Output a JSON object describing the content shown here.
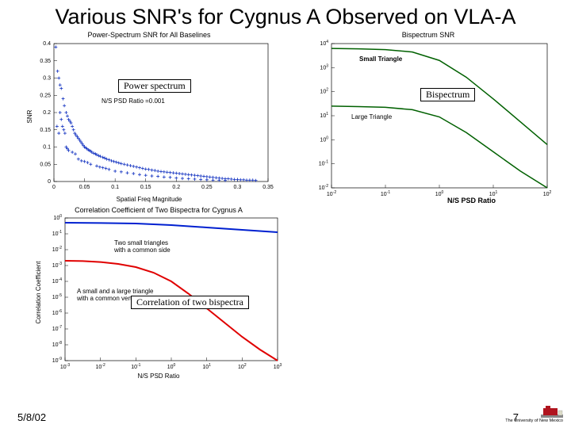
{
  "slide": {
    "title": "Various SNR's for Cygnus A Observed on VLA-A",
    "date": "5/8/02",
    "page": "7",
    "logo_text": "The University of New Mexico"
  },
  "labels": {
    "power_spectrum": "Power spectrum",
    "bispectrum": "Bispectrum",
    "correlation": "Correlation of two bispectra",
    "ns_psd_ratio": "N/S PSD Ratio"
  },
  "chart1": {
    "type": "scatter",
    "title": "Power-Spectrum SNR for All Baselines",
    "xlabel": "Spatial Freq Magnitude",
    "ylabel": "SNR",
    "annotation": "N/S PSD Ratio =0.001",
    "xlim": [
      0,
      0.35
    ],
    "ylim": [
      0,
      0.4
    ],
    "xticks": [
      0,
      0.05,
      0.1,
      0.15,
      0.2,
      0.25,
      0.3,
      0.35
    ],
    "yticks": [
      0,
      0.05,
      0.1,
      0.15,
      0.2,
      0.25,
      0.3,
      0.35,
      0.4
    ],
    "marker_color": "#1030c0",
    "marker_size": 2,
    "background_color": "#ffffff",
    "title_fontsize": 9,
    "label_fontsize": 8,
    "points": [
      [
        0.003,
        0.39
      ],
      [
        0.006,
        0.32
      ],
      [
        0.008,
        0.3
      ],
      [
        0.01,
        0.28
      ],
      [
        0.012,
        0.27
      ],
      [
        0.015,
        0.24
      ],
      [
        0.017,
        0.22
      ],
      [
        0.02,
        0.2
      ],
      [
        0.022,
        0.19
      ],
      [
        0.024,
        0.18
      ],
      [
        0.026,
        0.175
      ],
      [
        0.028,
        0.17
      ],
      [
        0.03,
        0.16
      ],
      [
        0.01,
        0.2
      ],
      [
        0.012,
        0.18
      ],
      [
        0.014,
        0.16
      ],
      [
        0.016,
        0.15
      ],
      [
        0.018,
        0.14
      ],
      [
        0.005,
        0.16
      ],
      [
        0.008,
        0.14
      ],
      [
        0.032,
        0.15
      ],
      [
        0.034,
        0.14
      ],
      [
        0.036,
        0.135
      ],
      [
        0.038,
        0.13
      ],
      [
        0.04,
        0.125
      ],
      [
        0.042,
        0.12
      ],
      [
        0.044,
        0.115
      ],
      [
        0.046,
        0.11
      ],
      [
        0.048,
        0.105
      ],
      [
        0.05,
        0.1
      ],
      [
        0.052,
        0.098
      ],
      [
        0.054,
        0.095
      ],
      [
        0.056,
        0.092
      ],
      [
        0.058,
        0.09
      ],
      [
        0.06,
        0.088
      ],
      [
        0.02,
        0.1
      ],
      [
        0.022,
        0.095
      ],
      [
        0.024,
        0.09
      ],
      [
        0.03,
        0.085
      ],
      [
        0.035,
        0.08
      ],
      [
        0.062,
        0.085
      ],
      [
        0.065,
        0.082
      ],
      [
        0.068,
        0.08
      ],
      [
        0.07,
        0.078
      ],
      [
        0.073,
        0.075
      ],
      [
        0.076,
        0.073
      ],
      [
        0.08,
        0.07
      ],
      [
        0.083,
        0.068
      ],
      [
        0.086,
        0.065
      ],
      [
        0.09,
        0.063
      ],
      [
        0.04,
        0.065
      ],
      [
        0.045,
        0.06
      ],
      [
        0.05,
        0.058
      ],
      [
        0.055,
        0.055
      ],
      [
        0.06,
        0.05
      ],
      [
        0.094,
        0.06
      ],
      [
        0.098,
        0.058
      ],
      [
        0.102,
        0.056
      ],
      [
        0.106,
        0.054
      ],
      [
        0.11,
        0.052
      ],
      [
        0.115,
        0.05
      ],
      [
        0.12,
        0.048
      ],
      [
        0.125,
        0.046
      ],
      [
        0.13,
        0.044
      ],
      [
        0.135,
        0.042
      ],
      [
        0.07,
        0.045
      ],
      [
        0.075,
        0.042
      ],
      [
        0.08,
        0.04
      ],
      [
        0.085,
        0.038
      ],
      [
        0.09,
        0.035
      ],
      [
        0.14,
        0.04
      ],
      [
        0.145,
        0.038
      ],
      [
        0.15,
        0.036
      ],
      [
        0.155,
        0.035
      ],
      [
        0.16,
        0.033
      ],
      [
        0.165,
        0.032
      ],
      [
        0.17,
        0.03
      ],
      [
        0.175,
        0.029
      ],
      [
        0.18,
        0.028
      ],
      [
        0.185,
        0.027
      ],
      [
        0.1,
        0.03
      ],
      [
        0.11,
        0.028
      ],
      [
        0.12,
        0.025
      ],
      [
        0.13,
        0.023
      ],
      [
        0.14,
        0.02
      ],
      [
        0.19,
        0.026
      ],
      [
        0.195,
        0.025
      ],
      [
        0.2,
        0.024
      ],
      [
        0.205,
        0.023
      ],
      [
        0.21,
        0.022
      ],
      [
        0.215,
        0.021
      ],
      [
        0.22,
        0.02
      ],
      [
        0.225,
        0.019
      ],
      [
        0.23,
        0.018
      ],
      [
        0.235,
        0.017
      ],
      [
        0.15,
        0.018
      ],
      [
        0.16,
        0.016
      ],
      [
        0.17,
        0.015
      ],
      [
        0.18,
        0.013
      ],
      [
        0.19,
        0.012
      ],
      [
        0.24,
        0.016
      ],
      [
        0.245,
        0.015
      ],
      [
        0.25,
        0.014
      ],
      [
        0.255,
        0.013
      ],
      [
        0.26,
        0.012
      ],
      [
        0.265,
        0.011
      ],
      [
        0.27,
        0.01
      ],
      [
        0.275,
        0.009
      ],
      [
        0.28,
        0.008
      ],
      [
        0.285,
        0.008
      ],
      [
        0.2,
        0.01
      ],
      [
        0.21,
        0.009
      ],
      [
        0.22,
        0.008
      ],
      [
        0.23,
        0.007
      ],
      [
        0.24,
        0.006
      ],
      [
        0.29,
        0.007
      ],
      [
        0.295,
        0.006
      ],
      [
        0.3,
        0.006
      ],
      [
        0.305,
        0.005
      ],
      [
        0.31,
        0.005
      ],
      [
        0.315,
        0.004
      ],
      [
        0.32,
        0.004
      ],
      [
        0.325,
        0.004
      ],
      [
        0.33,
        0.003
      ],
      [
        0.25,
        0.005
      ],
      [
        0.26,
        0.004
      ],
      [
        0.27,
        0.004
      ],
      [
        0.28,
        0.003
      ]
    ]
  },
  "chart2": {
    "type": "line",
    "title": "Bispectrum SNR",
    "xlabel": "",
    "ylabel": "",
    "annotation1": "Small Triangle",
    "annotation2": "Large Triangle",
    "xlim": [
      -2,
      2
    ],
    "ylim": [
      -2,
      4
    ],
    "xticks_exp": [
      -2,
      -1,
      0,
      1,
      2
    ],
    "yticks_exp": [
      -2,
      -1,
      0,
      1,
      2,
      3,
      4
    ],
    "scale": "log",
    "line_color": "#006000",
    "line_width": 1.5,
    "background_color": "#ffffff",
    "series": {
      "small": [
        [
          -2.0,
          3.8
        ],
        [
          -1.5,
          3.78
        ],
        [
          -1.0,
          3.75
        ],
        [
          -0.5,
          3.65
        ],
        [
          0.0,
          3.3
        ],
        [
          0.5,
          2.6
        ],
        [
          1.0,
          1.7
        ],
        [
          1.5,
          0.75
        ],
        [
          2.0,
          -0.2
        ]
      ],
      "large": [
        [
          -2.0,
          1.4
        ],
        [
          -1.5,
          1.38
        ],
        [
          -1.0,
          1.35
        ],
        [
          -0.5,
          1.25
        ],
        [
          0.0,
          0.95
        ],
        [
          0.5,
          0.3
        ],
        [
          1.0,
          -0.5
        ],
        [
          1.5,
          -1.3
        ],
        [
          2.0,
          -2.0
        ]
      ]
    }
  },
  "chart3": {
    "type": "line",
    "title": "Correlation Coefficient of Two Bispectra for Cygnus A",
    "xlabel": "N/S PSD Ratio",
    "ylabel": "Correlation Coefficient",
    "annotation1": "Two small triangles with a common side",
    "annotation2": "A small and a large triangle with a common vertex",
    "xlim": [
      -3,
      3
    ],
    "ylim": [
      -9,
      0
    ],
    "xticks_exp": [
      -3,
      -2,
      -1,
      0,
      1,
      2,
      3
    ],
    "yticks_exp": [
      -9,
      -8,
      -7,
      -6,
      -5,
      -4,
      -3,
      -2,
      -1,
      0
    ],
    "scale": "log",
    "background_color": "#ffffff",
    "series": {
      "blue": {
        "color": "#0020d0",
        "line_width": 2,
        "points": [
          [
            -3.0,
            -0.3
          ],
          [
            -2.0,
            -0.32
          ],
          [
            -1.0,
            -0.35
          ],
          [
            0.0,
            -0.45
          ],
          [
            1.0,
            -0.6
          ],
          [
            2.0,
            -0.75
          ],
          [
            3.0,
            -0.9
          ]
        ]
      },
      "red": {
        "color": "#e00000",
        "line_width": 2,
        "points": [
          [
            -3.0,
            -2.7
          ],
          [
            -2.5,
            -2.72
          ],
          [
            -2.0,
            -2.78
          ],
          [
            -1.5,
            -2.9
          ],
          [
            -1.0,
            -3.1
          ],
          [
            -0.5,
            -3.45
          ],
          [
            0.0,
            -4.0
          ],
          [
            0.5,
            -4.8
          ],
          [
            1.0,
            -5.7
          ],
          [
            1.5,
            -6.6
          ],
          [
            2.0,
            -7.5
          ],
          [
            2.5,
            -8.3
          ],
          [
            3.0,
            -9.0
          ]
        ]
      }
    }
  },
  "logo": {
    "building_color": "#b0141e",
    "text": "The University of New Mexico"
  }
}
